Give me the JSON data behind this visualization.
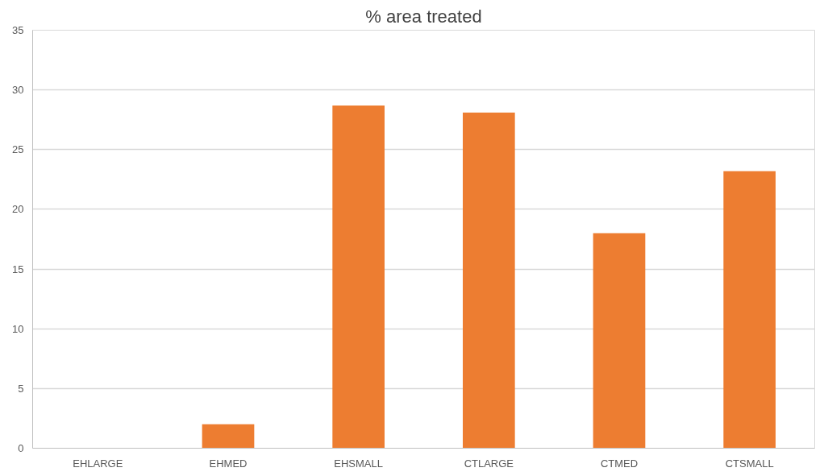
{
  "chart_data": {
    "type": "bar",
    "title": "% area treated",
    "categories": [
      "EHLARGE",
      "EHMED",
      "EHSMALL",
      "CTLARGE",
      "CTMED",
      "CTSMALL"
    ],
    "values": [
      0,
      2,
      28.7,
      28.1,
      18,
      23.2
    ],
    "color": "#ed7d31",
    "ylim": [
      0,
      35
    ],
    "yticks": [
      0,
      5,
      10,
      15,
      20,
      25,
      30,
      35
    ],
    "grid": "y"
  }
}
